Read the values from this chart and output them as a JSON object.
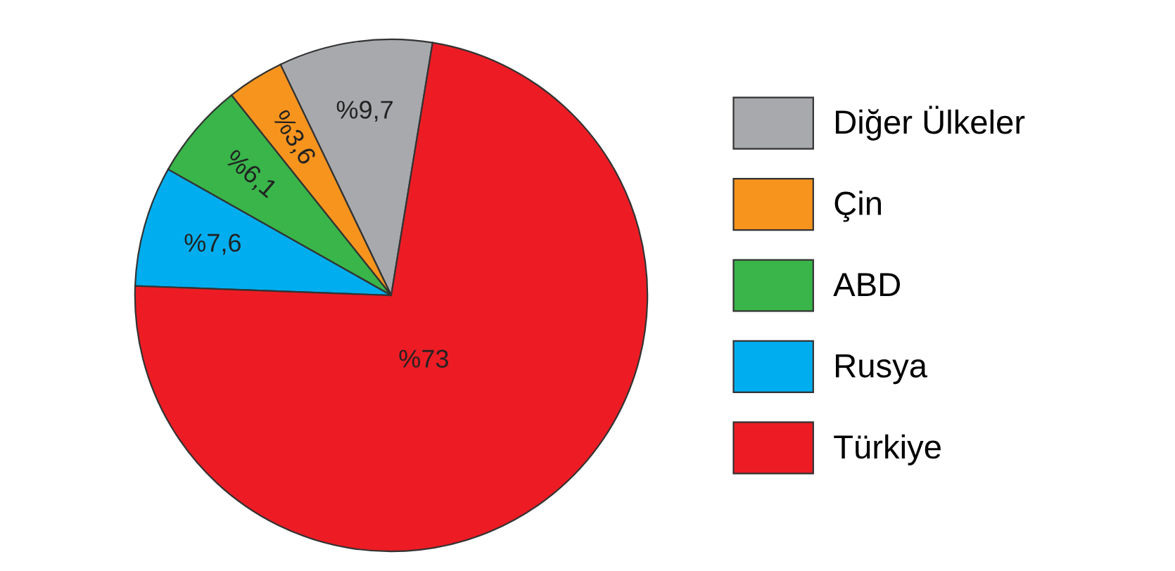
{
  "chart_data": {
    "type": "pie",
    "categories": [
      "Diğer Ülkeler",
      "Çin",
      "ABD",
      "Rusya",
      "Türkiye"
    ],
    "values": [
      9.7,
      3.6,
      6.1,
      7.6,
      73
    ],
    "colors": [
      "#a7a9ac",
      "#f7941d",
      "#39b54a",
      "#00aeef",
      "#ed1c24"
    ],
    "value_labels": [
      "%9,7",
      "%3,6",
      "%6,1",
      "%7,6",
      "%73"
    ],
    "legend": "right"
  }
}
